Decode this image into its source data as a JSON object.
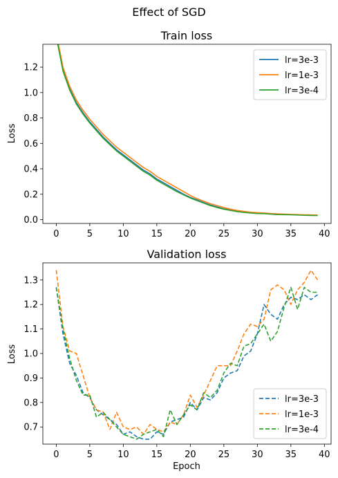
{
  "figure": {
    "suptitle": "Effect of SGD"
  },
  "chart_data": [
    {
      "type": "line",
      "title": "Train loss",
      "xlabel": "",
      "ylabel": "Loss",
      "xlim": [
        -2,
        41
      ],
      "ylim": [
        -0.03,
        1.38
      ],
      "xticks": [
        0,
        5,
        10,
        15,
        20,
        25,
        30,
        35,
        40
      ],
      "yticks": [
        0.0,
        0.2,
        0.4,
        0.6,
        0.8,
        1.0,
        1.2
      ],
      "ytick_labels": [
        "0.0",
        "0.2",
        "0.4",
        "0.6",
        "0.8",
        "1.0",
        "1.2"
      ],
      "linestyle": "solid",
      "legend_position": "top-right",
      "x": [
        0,
        1,
        2,
        3,
        4,
        5,
        6,
        7,
        8,
        9,
        10,
        11,
        12,
        13,
        14,
        15,
        16,
        17,
        18,
        19,
        20,
        21,
        22,
        23,
        24,
        25,
        26,
        27,
        28,
        29,
        30,
        31,
        32,
        33,
        34,
        35,
        36,
        37,
        38,
        39
      ],
      "series": [
        {
          "name": "lr=3e-3",
          "color": "#1f77b4",
          "values": [
            1.45,
            1.18,
            1.03,
            0.92,
            0.84,
            0.77,
            0.71,
            0.65,
            0.6,
            0.55,
            0.51,
            0.47,
            0.43,
            0.39,
            0.36,
            0.32,
            0.29,
            0.26,
            0.23,
            0.2,
            0.175,
            0.155,
            0.135,
            0.115,
            0.1,
            0.085,
            0.075,
            0.065,
            0.06,
            0.055,
            0.05,
            0.05,
            0.045,
            0.04,
            0.04,
            0.04,
            0.038,
            0.036,
            0.035,
            0.034
          ]
        },
        {
          "name": "lr=1e-3",
          "color": "#ff7f0e",
          "values": [
            1.47,
            1.2,
            1.05,
            0.94,
            0.86,
            0.79,
            0.73,
            0.67,
            0.62,
            0.57,
            0.53,
            0.49,
            0.45,
            0.41,
            0.38,
            0.34,
            0.31,
            0.28,
            0.25,
            0.22,
            0.19,
            0.165,
            0.145,
            0.125,
            0.11,
            0.095,
            0.082,
            0.072,
            0.065,
            0.058,
            0.055,
            0.052,
            0.048,
            0.045,
            0.043,
            0.041,
            0.04,
            0.038,
            0.037,
            0.036
          ]
        },
        {
          "name": "lr=3e-4",
          "color": "#2ca02c",
          "values": [
            1.44,
            1.17,
            1.02,
            0.91,
            0.83,
            0.76,
            0.7,
            0.64,
            0.59,
            0.54,
            0.5,
            0.46,
            0.42,
            0.38,
            0.35,
            0.31,
            0.28,
            0.25,
            0.22,
            0.195,
            0.17,
            0.15,
            0.13,
            0.11,
            0.095,
            0.082,
            0.072,
            0.063,
            0.057,
            0.052,
            0.048,
            0.047,
            0.043,
            0.04,
            0.039,
            0.038,
            0.036,
            0.034,
            0.033,
            0.032
          ]
        }
      ]
    },
    {
      "type": "line",
      "title": "Validation loss",
      "xlabel": "Epoch",
      "ylabel": "Loss",
      "xlim": [
        -2,
        41
      ],
      "ylim": [
        0.63,
        1.37
      ],
      "xticks": [
        0,
        5,
        10,
        15,
        20,
        25,
        30,
        35,
        40
      ],
      "yticks": [
        0.7,
        0.8,
        0.9,
        1.0,
        1.1,
        1.2,
        1.3
      ],
      "ytick_labels": [
        "0.7",
        "0.8",
        "0.9",
        "1.0",
        "1.1",
        "1.2",
        "1.3"
      ],
      "linestyle": "dashed",
      "legend_position": "bottom-right",
      "x": [
        0,
        1,
        2,
        3,
        4,
        5,
        6,
        7,
        8,
        9,
        10,
        11,
        12,
        13,
        14,
        15,
        16,
        17,
        18,
        19,
        20,
        21,
        22,
        23,
        24,
        25,
        26,
        27,
        28,
        29,
        30,
        31,
        32,
        33,
        34,
        35,
        36,
        37,
        38,
        39
      ],
      "series": [
        {
          "name": "lr=3e-3",
          "color": "#1f77b4",
          "values": [
            1.27,
            1.08,
            0.96,
            0.91,
            0.84,
            0.82,
            0.77,
            0.75,
            0.73,
            0.71,
            0.67,
            0.68,
            0.66,
            0.65,
            0.65,
            0.68,
            0.67,
            0.72,
            0.73,
            0.74,
            0.8,
            0.77,
            0.82,
            0.81,
            0.84,
            0.9,
            0.92,
            0.93,
            0.99,
            1.01,
            1.08,
            1.2,
            1.16,
            1.14,
            1.2,
            1.23,
            1.22,
            1.24,
            1.22,
            1.24
          ]
        },
        {
          "name": "lr=1e-3",
          "color": "#ff7f0e",
          "values": [
            1.34,
            1.11,
            1.01,
            1.0,
            0.91,
            0.82,
            0.77,
            0.76,
            0.69,
            0.76,
            0.7,
            0.69,
            0.7,
            0.67,
            0.71,
            0.69,
            0.68,
            0.72,
            0.71,
            0.75,
            0.83,
            0.78,
            0.83,
            0.89,
            0.95,
            0.95,
            0.95,
            1.01,
            1.08,
            1.12,
            1.11,
            1.14,
            1.26,
            1.28,
            1.26,
            1.2,
            1.26,
            1.29,
            1.34,
            1.3
          ]
        },
        {
          "name": "lr=3e-4",
          "color": "#2ca02c",
          "values": [
            1.27,
            1.1,
            0.98,
            0.89,
            0.83,
            0.83,
            0.74,
            0.76,
            0.73,
            0.7,
            0.67,
            0.66,
            0.65,
            0.67,
            0.68,
            0.69,
            0.66,
            0.77,
            0.71,
            0.75,
            0.79,
            0.77,
            0.84,
            0.82,
            0.85,
            0.92,
            0.96,
            0.95,
            1.03,
            1.04,
            1.08,
            1.12,
            1.05,
            1.09,
            1.19,
            1.27,
            1.18,
            1.27,
            1.25,
            1.25
          ]
        }
      ]
    }
  ]
}
